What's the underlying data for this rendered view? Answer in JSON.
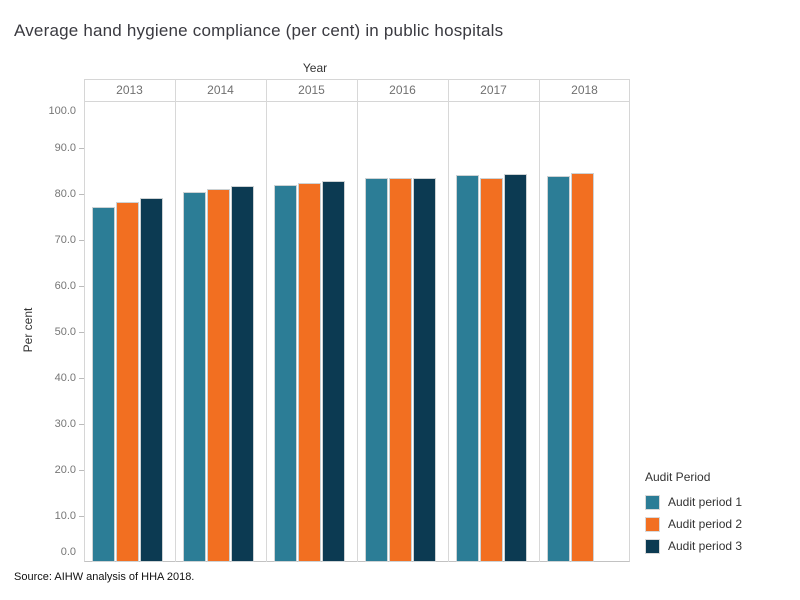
{
  "title": "Average hand hygiene compliance (per cent) in public hospitals",
  "source_note": "Source: AIHW analysis of HHA 2018.",
  "axes": {
    "x_field_label": "Year",
    "y_label": "Per cent"
  },
  "legend": {
    "title": "Audit Period",
    "position": "right"
  },
  "colors": {
    "audit_period_1": "#2c7d96",
    "audit_period_2": "#f26f21",
    "audit_period_3": "#0c3a52",
    "grid_border": "#d6d6d6",
    "tick_text": "#767676",
    "header_text": "#707070"
  },
  "chart_data": {
    "type": "bar",
    "title": "Average hand hygiene compliance (per cent) in public hospitals",
    "categories": [
      "2013",
      "2014",
      "2015",
      "2016",
      "2017",
      "2018"
    ],
    "series": [
      {
        "name": "Audit period 1",
        "color": "#2c7d96",
        "values": [
          77.2,
          80.4,
          82.0,
          83.4,
          84.2,
          84.0
        ]
      },
      {
        "name": "Audit period 2",
        "color": "#f26f21",
        "values": [
          78.3,
          81.0,
          82.3,
          83.4,
          83.5,
          84.5
        ]
      },
      {
        "name": "Audit period 3",
        "color": "#0c3a52",
        "values": [
          79.2,
          81.7,
          82.9,
          83.4,
          84.3,
          null
        ]
      }
    ],
    "xlabel": "Year",
    "ylabel": "Per cent",
    "ylim": [
      0,
      100
    ],
    "yticks": [
      0,
      10,
      20,
      30,
      40,
      50,
      60,
      70,
      80,
      90,
      100
    ],
    "ytick_decimals": 1,
    "grid": false,
    "legend_position": "right"
  }
}
